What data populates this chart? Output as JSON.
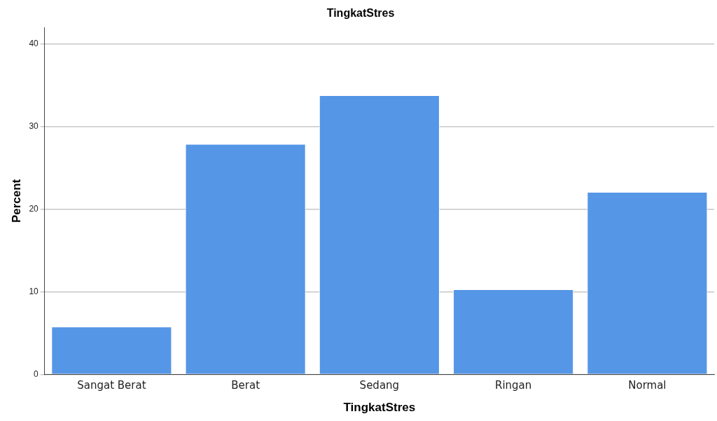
{
  "chart_data": {
    "type": "bar",
    "title": "TingkatStres",
    "xlabel": "TingkatStres",
    "ylabel": "Percent",
    "categories": [
      "Sangat Berat",
      "Berat",
      "Sedang",
      "Ringan",
      "Normal"
    ],
    "values": [
      5.8,
      27.9,
      33.8,
      10.3,
      22.1
    ],
    "color": "#5596e6",
    "ylim": [
      0,
      42
    ],
    "yticks": [
      0,
      10,
      20,
      30,
      40
    ],
    "grid": "y",
    "legend": false
  }
}
